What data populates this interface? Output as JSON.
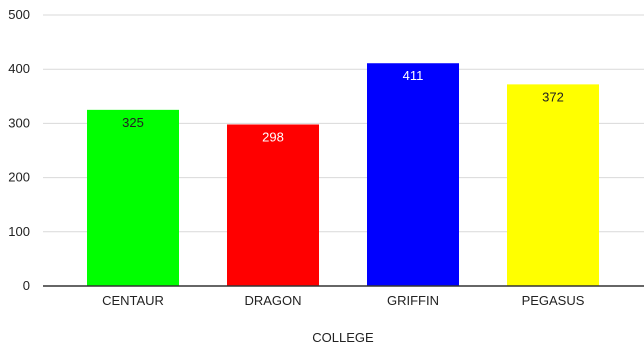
{
  "chart_data": {
    "type": "bar",
    "title": "",
    "xlabel": "COLLEGE",
    "ylabel": "",
    "categories": [
      "CENTAUR",
      "DRAGON",
      "GRIFFIN",
      "PEGASUS"
    ],
    "values": [
      325,
      298,
      411,
      372
    ],
    "data_labels": [
      "325",
      "298",
      "411",
      "372"
    ],
    "bar_colors": [
      "#00ff00",
      "#ff0000",
      "#0000ff",
      "#ffff00"
    ],
    "label_colors": [
      "#222222",
      "#ffffff",
      "#ffffff",
      "#222222"
    ],
    "ylim": [
      0,
      500
    ],
    "yticks": [
      "0",
      "100",
      "200",
      "300",
      "400",
      "500"
    ],
    "grid": true,
    "legend": "none"
  }
}
